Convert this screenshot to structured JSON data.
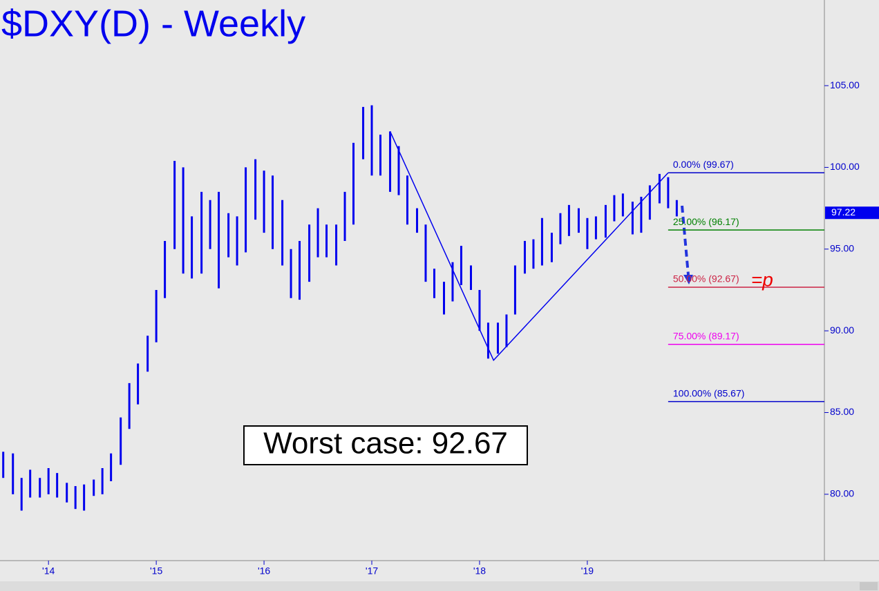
{
  "chart_data": {
    "type": "ohlc",
    "title": "$DXY(D) - Weekly",
    "color": "#0000ee",
    "x": [
      2013.58,
      2013.67,
      2013.75,
      2013.83,
      2013.92,
      2014.0,
      2014.08,
      2014.17,
      2014.25,
      2014.33,
      2014.42,
      2014.5,
      2014.58,
      2014.67,
      2014.75,
      2014.83,
      2014.92,
      2015.0,
      2015.08,
      2015.17,
      2015.25,
      2015.33,
      2015.42,
      2015.5,
      2015.58,
      2015.67,
      2015.75,
      2015.83,
      2015.92,
      2016.0,
      2016.08,
      2016.17,
      2016.25,
      2016.33,
      2016.42,
      2016.5,
      2016.58,
      2016.67,
      2016.75,
      2016.83,
      2016.92,
      2017.0,
      2017.08,
      2017.17,
      2017.25,
      2017.33,
      2017.42,
      2017.5,
      2017.58,
      2017.67,
      2017.75,
      2017.83,
      2017.92,
      2018.0,
      2018.08,
      2018.17,
      2018.25,
      2018.33,
      2018.42,
      2018.5,
      2018.58,
      2018.67,
      2018.75,
      2018.83,
      2018.92,
      2019.0,
      2019.08,
      2019.17,
      2019.25,
      2019.33,
      2019.42,
      2019.5,
      2019.58,
      2019.67,
      2019.75,
      2019.83
    ],
    "highs": [
      82.6,
      82.5,
      81.0,
      81.5,
      81.0,
      81.6,
      81.3,
      80.7,
      80.5,
      80.6,
      80.9,
      81.6,
      82.5,
      84.7,
      86.8,
      88.0,
      89.7,
      92.5,
      95.5,
      100.4,
      100.0,
      97.0,
      98.5,
      98.0,
      98.5,
      97.2,
      97.0,
      100.0,
      100.5,
      99.8,
      99.5,
      98.0,
      95.0,
      95.5,
      96.5,
      97.5,
      96.5,
      96.5,
      98.5,
      101.5,
      103.7,
      103.8,
      102.0,
      102.2,
      101.3,
      99.5,
      97.5,
      96.5,
      93.8,
      93.0,
      94.2,
      95.2,
      94.0,
      92.5,
      90.5,
      90.5,
      91.0,
      94.0,
      95.5,
      95.6,
      96.9,
      96.0,
      97.2,
      97.7,
      97.5,
      96.9,
      97.0,
      97.7,
      98.3,
      98.4,
      97.9,
      98.2,
      98.9,
      99.6,
      99.4,
      98.0
    ],
    "lows": [
      81.0,
      80.0,
      79.0,
      79.8,
      79.8,
      80.0,
      79.8,
      79.5,
      79.1,
      79.0,
      79.9,
      80.0,
      80.8,
      81.8,
      84.0,
      85.5,
      87.5,
      89.3,
      92.0,
      95.0,
      93.5,
      93.2,
      93.5,
      95.0,
      92.6,
      94.5,
      94.0,
      94.8,
      96.8,
      96.0,
      95.0,
      94.0,
      92.0,
      91.9,
      93.0,
      94.5,
      94.5,
      94.0,
      95.5,
      96.5,
      100.5,
      99.5,
      99.5,
      98.5,
      98.3,
      96.5,
      96.0,
      93.0,
      92.0,
      91.0,
      91.8,
      92.8,
      92.5,
      90.0,
      88.3,
      88.6,
      89.0,
      91.0,
      93.5,
      93.8,
      94.0,
      94.2,
      95.3,
      95.8,
      96.0,
      95.0,
      95.6,
      95.7,
      96.7,
      97.0,
      95.9,
      96.0,
      96.8,
      97.8,
      97.5,
      97.0
    ],
    "xlim": [
      2013.55,
      2021.2
    ],
    "xticks": [
      {
        "value": 2014,
        "label": "'14"
      },
      {
        "value": 2015,
        "label": "'15"
      },
      {
        "value": 2016,
        "label": "'16"
      },
      {
        "value": 2017,
        "label": "'17"
      },
      {
        "value": 2018,
        "label": "'18"
      },
      {
        "value": 2019,
        "label": "'19"
      }
    ],
    "ylim": [
      75.94,
      110.24
    ],
    "yticks": [
      {
        "value": 80,
        "label": "80.00"
      },
      {
        "value": 85,
        "label": "85.00"
      },
      {
        "value": 90,
        "label": "90.00"
      },
      {
        "value": 95,
        "label": "95.00"
      },
      {
        "value": 100,
        "label": "100.00"
      },
      {
        "value": 105,
        "label": "105.00"
      }
    ],
    "last": {
      "value": 97.22,
      "label": "97.22"
    },
    "swing_x": [
      2017.17,
      2018.13,
      2019.75
    ],
    "swing_y": [
      102.2,
      88.2,
      99.67
    ],
    "fib_start": 2019.75,
    "fib_levels": [
      {
        "value": 99.67,
        "label": "0.00% (99.67)",
        "color": "#0000cc"
      },
      {
        "value": 96.17,
        "label": "25.00% (96.17)",
        "color": "#008000"
      },
      {
        "value": 92.67,
        "label": "50.00% (92.67)",
        "color": "#cc2244"
      },
      {
        "value": 89.17,
        "label": "75.00% (89.17)",
        "color": "#ee00ee"
      },
      {
        "value": 85.67,
        "label": "100.00% (85.67)",
        "color": "#0000cc"
      }
    ],
    "target_marker": "=p",
    "annotation": "Worst case: 92.67"
  }
}
